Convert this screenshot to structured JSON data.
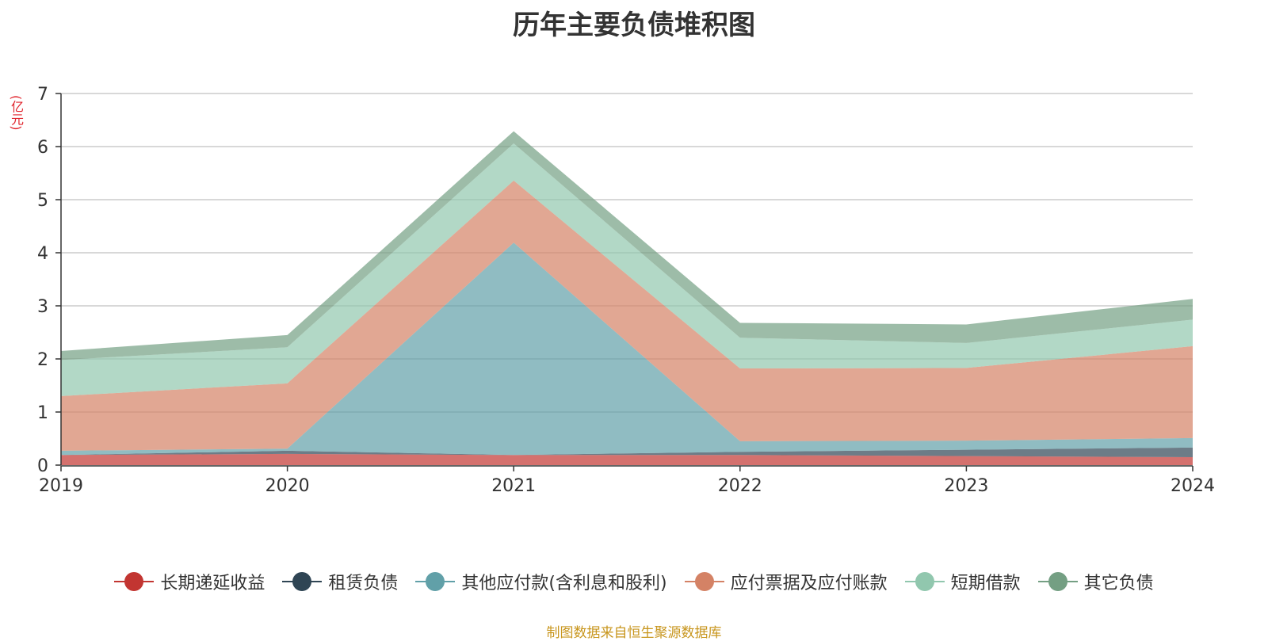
{
  "chart_data": {
    "type": "area",
    "stacked": true,
    "title": "历年主要负债堆积图",
    "unit": "(亿元)",
    "x": [
      "2019",
      "2020",
      "2021",
      "2022",
      "2023",
      "2024"
    ],
    "ylim": [
      0,
      7
    ],
    "yticks": [
      0,
      1,
      2,
      3,
      4,
      5,
      6,
      7
    ],
    "grid": true,
    "legend_position": "bottom",
    "series": [
      {
        "name": "长期递延收益",
        "color": "#c23531",
        "values": [
          0.19,
          0.21,
          0.19,
          0.19,
          0.17,
          0.15
        ]
      },
      {
        "name": "租赁负债",
        "color": "#2f4554",
        "values": [
          0.0,
          0.06,
          0.0,
          0.06,
          0.12,
          0.18
        ]
      },
      {
        "name": "其他应付款(含利息和股利)",
        "color": "#61a0a8",
        "values": [
          0.08,
          0.04,
          4.0,
          0.2,
          0.17,
          0.18
        ]
      },
      {
        "name": "应付票据及应付账款",
        "color": "#d48265",
        "values": [
          1.03,
          1.23,
          1.17,
          1.37,
          1.37,
          1.73
        ]
      },
      {
        "name": "短期借款",
        "color": "#91c7ae",
        "values": [
          0.68,
          0.68,
          0.7,
          0.58,
          0.47,
          0.5
        ]
      },
      {
        "name": "其它负债",
        "color": "#749f83",
        "values": [
          0.17,
          0.23,
          0.23,
          0.28,
          0.35,
          0.39
        ]
      }
    ]
  },
  "source_note": "制图数据来自恒生聚源数据库"
}
